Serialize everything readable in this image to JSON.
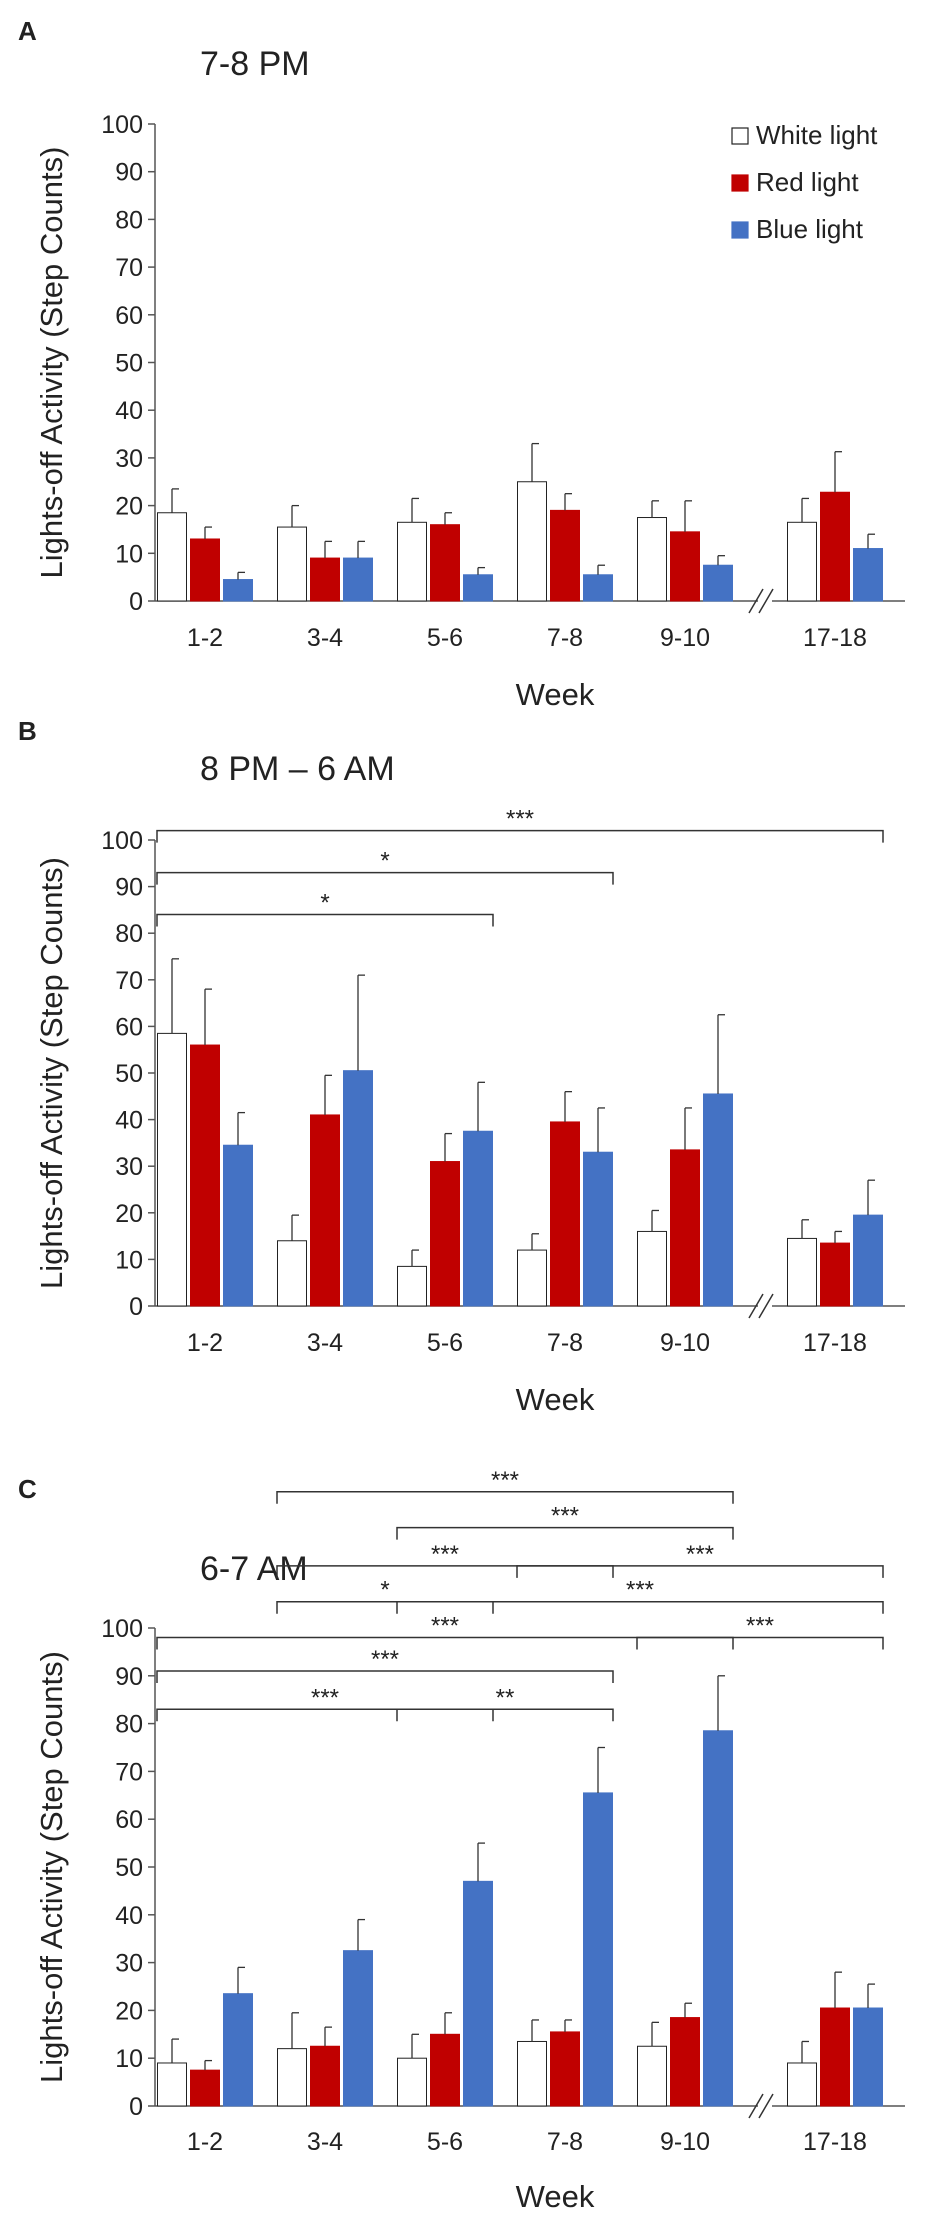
{
  "legend": [
    {
      "name": "White light",
      "color": "#ffffff"
    },
    {
      "name": "Red light",
      "color": "#c00000"
    },
    {
      "name": "Blue light",
      "color": "#4472c4"
    }
  ],
  "chart_data": [
    {
      "panel": "A",
      "type": "bar",
      "title": "7-8 PM",
      "xlabel": "Week",
      "ylabel": "Lights-off Activity (Step Counts)",
      "ylim": [
        0,
        100
      ],
      "yticks": [
        0,
        10,
        20,
        30,
        40,
        50,
        60,
        70,
        80,
        90,
        100
      ],
      "categories": [
        "1-2",
        "3-4",
        "5-6",
        "7-8",
        "9-10",
        "17-18"
      ],
      "axis_break_between": [
        "9-10",
        "17-18"
      ],
      "series": [
        {
          "name": "White light",
          "values": [
            18.5,
            15.5,
            16.5,
            25,
            17.5,
            16.5
          ],
          "errors": [
            5,
            4.5,
            5,
            8,
            3.5,
            5
          ]
        },
        {
          "name": "Red light",
          "values": [
            13,
            9,
            16,
            19,
            14.5,
            22.8
          ],
          "errors": [
            2.5,
            3.5,
            2.5,
            3.5,
            6.5,
            8.5
          ]
        },
        {
          "name": "Blue light",
          "values": [
            4.5,
            9,
            5.5,
            5.5,
            7.5,
            11
          ],
          "errors": [
            1.5,
            3.5,
            1.5,
            2,
            2,
            3
          ]
        }
      ],
      "significance": []
    },
    {
      "panel": "B",
      "type": "bar",
      "title": "8 PM – 6 AM",
      "xlabel": "Week",
      "ylabel": "Lights-off Activity (Step Counts)",
      "ylim": [
        0,
        100
      ],
      "yticks": [
        0,
        10,
        20,
        30,
        40,
        50,
        60,
        70,
        80,
        90,
        100
      ],
      "categories": [
        "1-2",
        "3-4",
        "5-6",
        "7-8",
        "9-10",
        "17-18"
      ],
      "axis_break_between": [
        "9-10",
        "17-18"
      ],
      "series": [
        {
          "name": "White light",
          "values": [
            58.5,
            14,
            8.5,
            12,
            16,
            14.5
          ],
          "errors": [
            16,
            5.5,
            3.5,
            3.5,
            4.5,
            4
          ]
        },
        {
          "name": "Red light",
          "values": [
            56,
            41,
            31,
            39.5,
            33.5,
            13.5
          ],
          "errors": [
            12,
            8.5,
            6,
            6.5,
            9,
            2.5
          ]
        },
        {
          "name": "Blue light",
          "values": [
            34.5,
            50.5,
            37.5,
            33,
            45.5,
            19.5
          ],
          "errors": [
            7,
            20.5,
            10.5,
            9.5,
            17,
            7.5
          ]
        }
      ],
      "significance": [
        {
          "from": "1-2",
          "to": "5-6",
          "label": "*",
          "y": 84
        },
        {
          "from": "1-2",
          "to": "7-8",
          "label": "*",
          "y": 93
        },
        {
          "from": "1-2",
          "to": "17-18",
          "label": "***",
          "y": 102
        }
      ]
    },
    {
      "panel": "C",
      "type": "bar",
      "title": "6-7 AM",
      "xlabel": "Week",
      "ylabel": "Lights-off Activity (Step Counts)",
      "ylim": [
        0,
        100
      ],
      "yticks": [
        0,
        10,
        20,
        30,
        40,
        50,
        60,
        70,
        80,
        90,
        100
      ],
      "categories": [
        "1-2",
        "3-4",
        "5-6",
        "7-8",
        "9-10",
        "17-18"
      ],
      "axis_break_between": [
        "9-10",
        "17-18"
      ],
      "series": [
        {
          "name": "White light",
          "values": [
            9,
            12,
            10,
            13.5,
            12.5,
            9
          ],
          "errors": [
            5,
            7.5,
            5,
            4.5,
            5,
            4.5
          ]
        },
        {
          "name": "Red light",
          "values": [
            7.5,
            12.5,
            15,
            15.5,
            18.5,
            20.5
          ],
          "errors": [
            2,
            4,
            4.5,
            2.5,
            3,
            7.5
          ]
        },
        {
          "name": "Blue light",
          "values": [
            23.5,
            32.5,
            47,
            65.5,
            78.5,
            20.5
          ],
          "errors": [
            5.5,
            6.5,
            8,
            9.5,
            11.5,
            5
          ]
        }
      ],
      "significance": [
        {
          "from": "1-2",
          "to": "5-6",
          "label": "***",
          "y": 83
        },
        {
          "from": "5-6",
          "to": "7-8",
          "label": "**",
          "y": 83
        },
        {
          "from": "1-2",
          "to": "7-8",
          "label": "***",
          "y": 91
        },
        {
          "from": "1-2",
          "to": "9-10",
          "label": "***",
          "y": 98
        },
        {
          "from": "9-10",
          "to": "17-18",
          "label": "***",
          "y": 98
        },
        {
          "from": "3-4",
          "to": "5-6",
          "label": "*",
          "y": 105.5
        },
        {
          "from": "5-6",
          "to": "17-18",
          "label": "***",
          "y": 105.5
        },
        {
          "from": "3-4",
          "to": "7-8",
          "label": "***",
          "y": 113
        },
        {
          "from": "7-8",
          "to": "17-18",
          "label": "***",
          "y": 113
        },
        {
          "from": "5-6",
          "to": "9-10",
          "label": "***",
          "y": 121
        },
        {
          "from": "3-4",
          "to": "9-10",
          "label": "***",
          "y": 128.5
        }
      ]
    }
  ]
}
